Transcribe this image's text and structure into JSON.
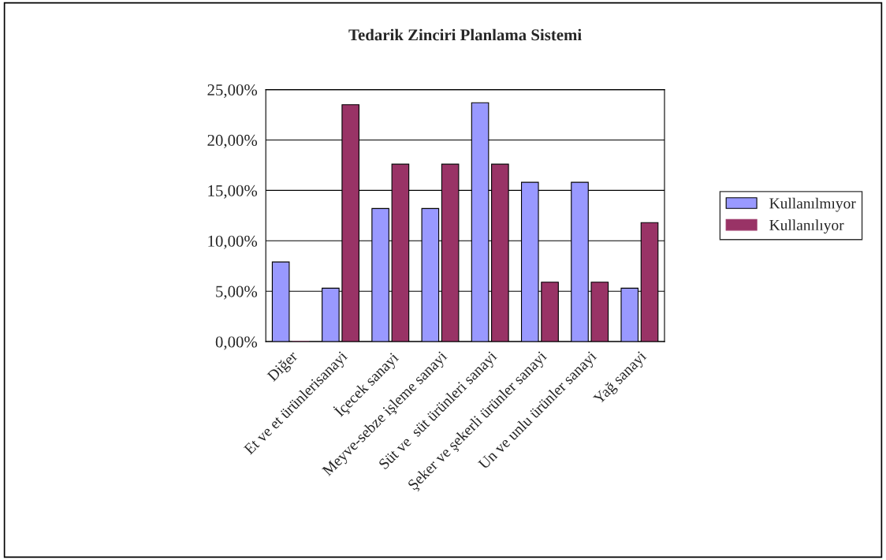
{
  "chart_data": {
    "type": "bar",
    "title": "Tedarik Zinciri Planlama Sistemi",
    "categories": [
      "Diğer",
      "Et ve et ürünlerisanayi",
      "İçecek sanayi",
      "Meyve-sebze işleme sanayi",
      "Süt ve  süt ürünleri sanayi",
      "Şeker ve şekerli ürünler sanayi",
      "Un ve unlu ürünler sanayi",
      "Yağ sanayi"
    ],
    "series": [
      {
        "name": "Kullanılmıyor",
        "color": "#9999ff",
        "values": [
          7.9,
          5.3,
          13.2,
          13.2,
          23.7,
          15.8,
          15.8,
          5.3
        ]
      },
      {
        "name": "Kullanılıyor",
        "color": "#993366",
        "values": [
          0,
          23.5,
          17.6,
          17.6,
          17.6,
          5.9,
          5.9,
          11.8
        ]
      }
    ],
    "ylim": [
      0,
      25
    ],
    "yticks": [
      {
        "value": 0,
        "label": "0,00%"
      },
      {
        "value": 5,
        "label": "5,00%"
      },
      {
        "value": 10,
        "label": "10,00%"
      },
      {
        "value": 15,
        "label": "15,00%"
      },
      {
        "value": 20,
        "label": "20,00%"
      },
      {
        "value": 25,
        "label": "25,00%"
      }
    ],
    "grid": "y",
    "legend": "right"
  }
}
